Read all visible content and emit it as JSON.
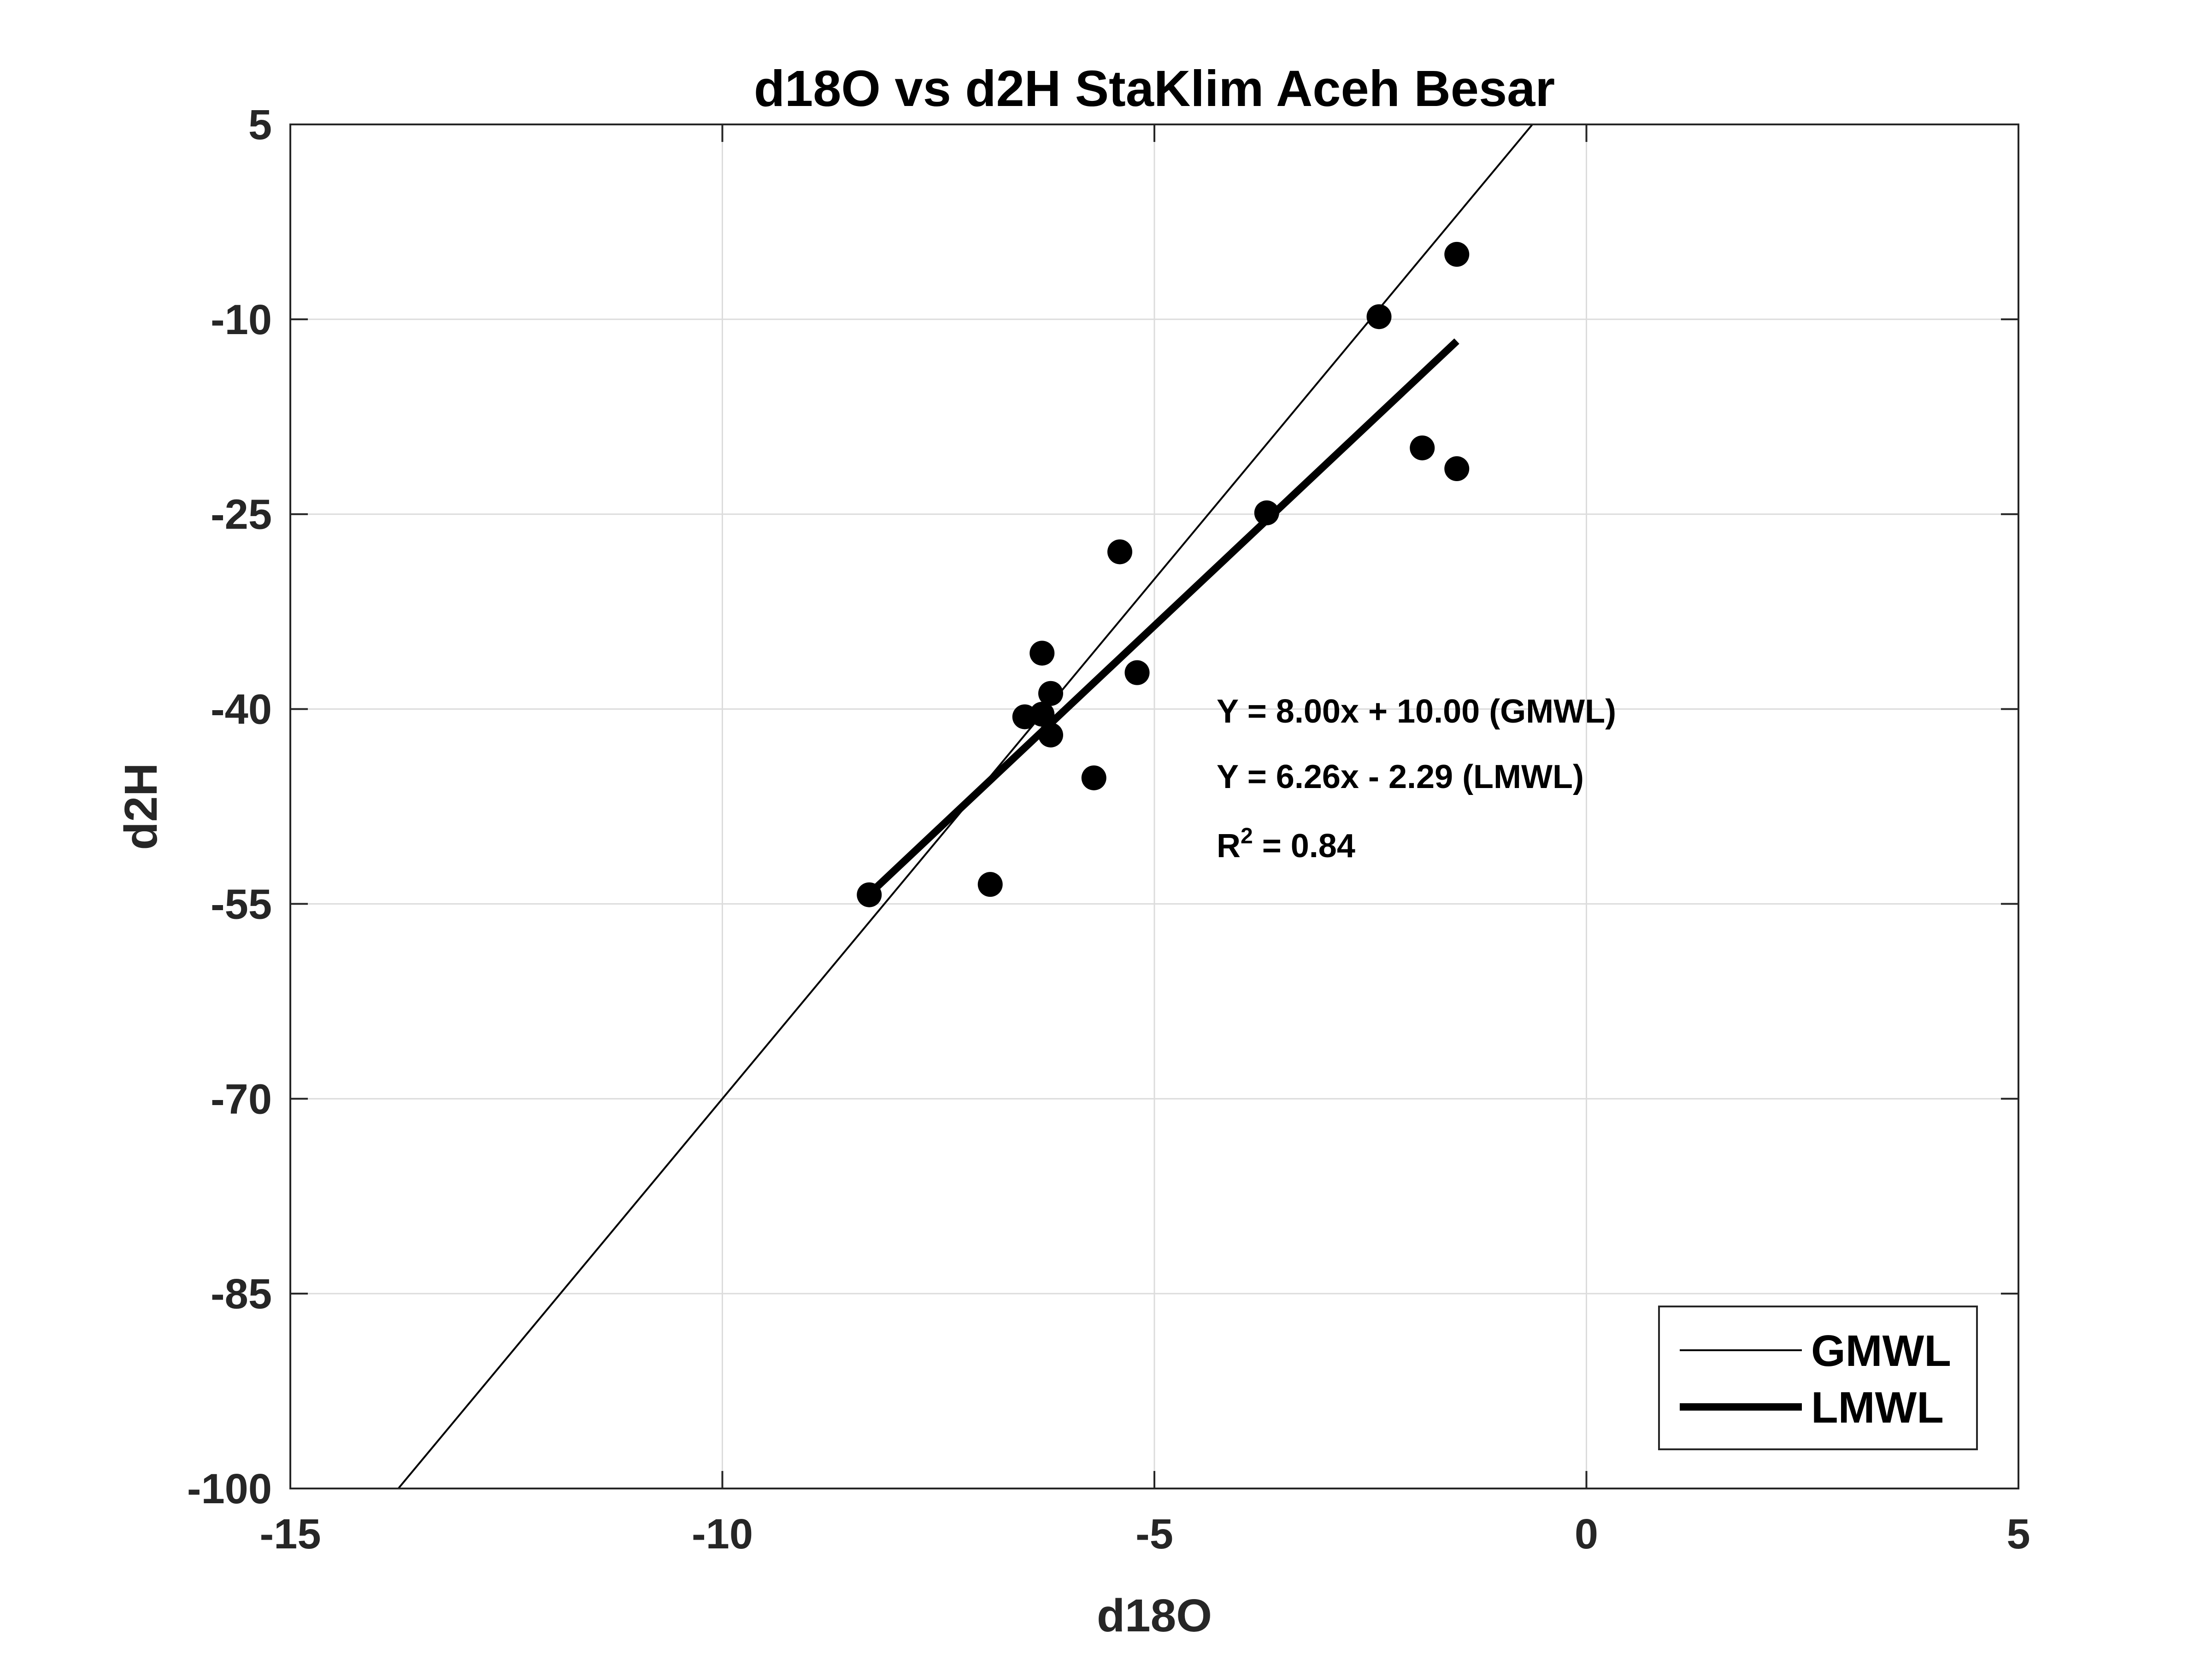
{
  "chart_data": {
    "type": "scatter",
    "title": "d18O vs d2H StaKlim Aceh Besar",
    "xlabel": "d18O",
    "ylabel": "d2H",
    "xlim": [
      -15,
      5
    ],
    "ylim": [
      -100,
      5
    ],
    "xticks": [
      -15,
      -10,
      -5,
      0,
      5
    ],
    "yticks": [
      -100,
      -85,
      -70,
      -55,
      -40,
      -25,
      -10,
      5
    ],
    "xtick_labels": [
      "-15",
      "-10",
      "-5",
      "0",
      "5"
    ],
    "ytick_labels": [
      "-100",
      "-85",
      "-70",
      "-55",
      "-40",
      "-25",
      "-10",
      "5"
    ],
    "grid": true,
    "points": {
      "x": [
        -1.5,
        -2.4,
        -1.9,
        -1.5,
        -3.7,
        -5.4,
        -6.3,
        -5.2,
        -6.2,
        -6.5,
        -6.3,
        -6.2,
        -5.7,
        -6.9,
        -8.3
      ],
      "y": [
        -5.0,
        -9.8,
        -19.9,
        -21.5,
        -24.9,
        -27.9,
        -35.7,
        -37.2,
        -38.8,
        -40.6,
        -40.4,
        -42.0,
        -45.3,
        -53.5,
        -54.3
      ],
      "color": "#000000"
    },
    "lines": [
      {
        "name": "GMWL",
        "slope": 8.0,
        "intercept": 10.0,
        "x_range": [
          -15,
          5
        ],
        "color": "#000000",
        "weight": "thin"
      },
      {
        "name": "LMWL",
        "slope": 6.26,
        "intercept": -2.29,
        "x_range": [
          -8.3,
          -1.5
        ],
        "color": "#000000",
        "weight": "thick"
      }
    ],
    "annotations": {
      "gmwl_eq": "Y = 8.00x + 10.00 (GMWL)",
      "lmwl_eq": "Y = 6.26x - 2.29 (LMWL)",
      "r2_prefix": "R",
      "r2_sup": "2",
      "r2_value": " = 0.84"
    },
    "legend": {
      "position": "bottom-right",
      "entries": [
        "GMWL",
        "LMWL"
      ]
    }
  }
}
